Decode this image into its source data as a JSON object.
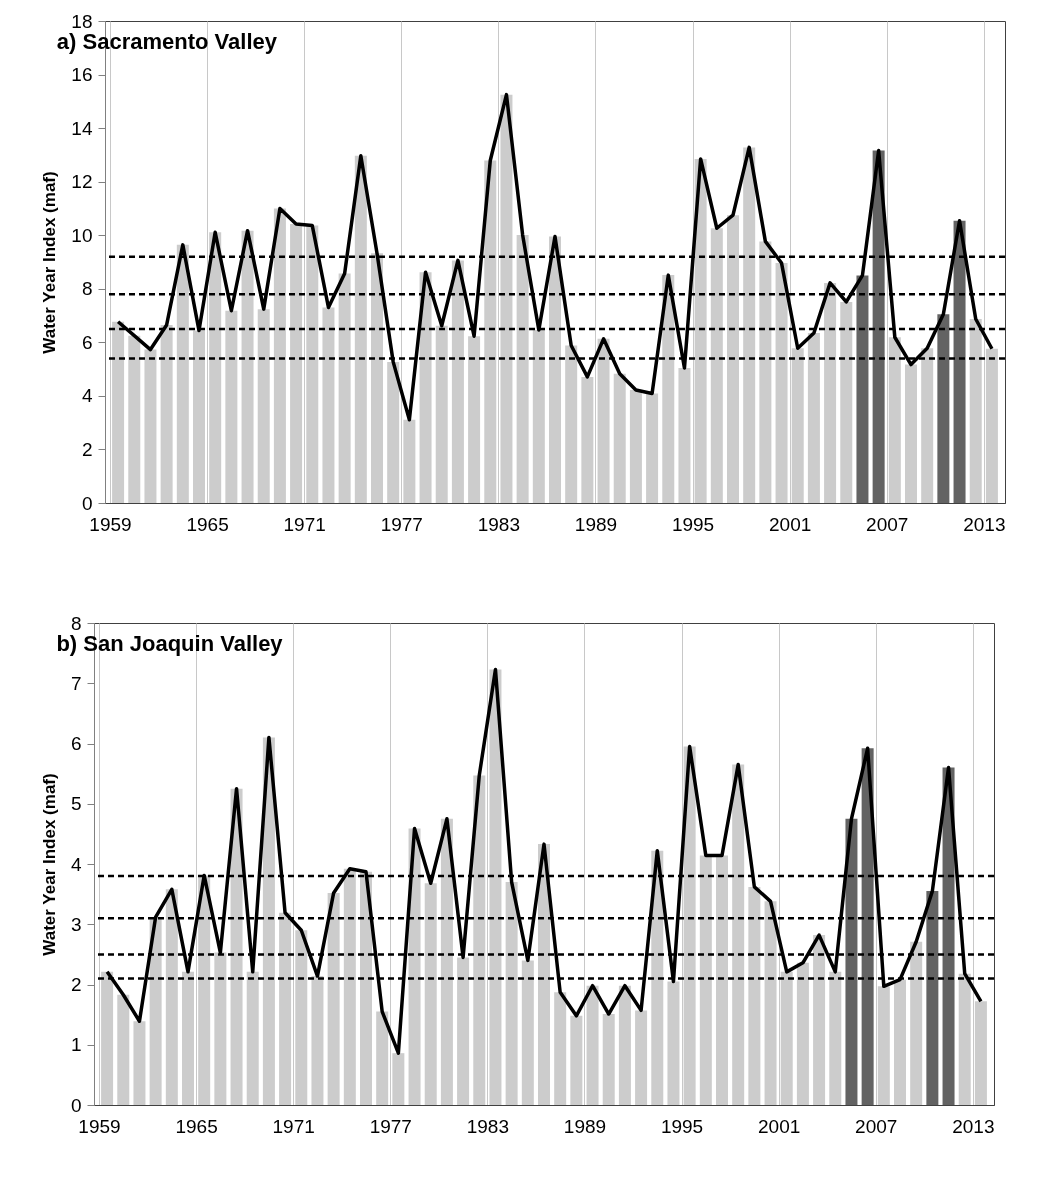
{
  "chart_data": [
    {
      "type": "bar",
      "title": "a) Sacramento Valley",
      "ylabel": "Water Year Index (maf)",
      "x": [
        1959.5,
        1960.5,
        1961.5,
        1962.5,
        1963.5,
        1964.5,
        1965.5,
        1966.5,
        1967.5,
        1968.5,
        1969.5,
        1970.5,
        1971.5,
        1972.5,
        1973.5,
        1974.5,
        1975.5,
        1976.5,
        1977.5,
        1978.5,
        1979.5,
        1980.5,
        1981.5,
        1982.5,
        1983.5,
        1984.5,
        1985.5,
        1986.5,
        1987.5,
        1988.5,
        1989.5,
        1990.5,
        1991.5,
        1992.5,
        1993.5,
        1994.5,
        1995.5,
        1996.5,
        1997.5,
        1998.5,
        1999.5,
        2000.5,
        2001.5,
        2002.5,
        2003.5,
        2004.5,
        2005.5,
        2006.5,
        2007.5,
        2008.5,
        2009.5,
        2010.5,
        2011.5,
        2012.5,
        2013.5
      ],
      "series": [
        {
          "colors": [
            "#cccccc",
            "#cccccc",
            "#cccccc",
            "#cccccc",
            "#cccccc",
            "#cccccc",
            "#cccccc",
            "#cccccc",
            "#cccccc",
            "#cccccc",
            "#cccccc",
            "#cccccc",
            "#cccccc",
            "#cccccc",
            "#cccccc",
            "#cccccc",
            "#cccccc",
            "#cccccc",
            "#cccccc",
            "#cccccc",
            "#cccccc",
            "#cccccc",
            "#cccccc",
            "#cccccc",
            "#cccccc",
            "#cccccc",
            "#cccccc",
            "#cccccc",
            "#cccccc",
            "#cccccc",
            "#cccccc",
            "#cccccc",
            "#cccccc",
            "#cccccc",
            "#cccccc",
            "#cccccc",
            "#cccccc",
            "#cccccc",
            "#cccccc",
            "#cccccc",
            "#cccccc",
            "#cccccc",
            "#cccccc",
            "#cccccc",
            "#cccccc",
            "#cccccc",
            "#636363",
            "#636363",
            "#cccccc",
            "#cccccc",
            "#cccccc",
            "#636363",
            "#636363",
            "#cccccc",
            "#cccccc"
          ],
          "values": [
            6.77,
            6.25,
            5.73,
            6.65,
            9.64,
            6.44,
            10.11,
            7.18,
            10.17,
            7.24,
            11.0,
            10.42,
            10.36,
            7.3,
            8.57,
            12.97,
            9.33,
            5.27,
            3.11,
            8.62,
            6.62,
            9.06,
            6.23,
            12.79,
            15.25,
            10.01,
            6.46,
            9.95,
            5.88,
            4.71,
            6.13,
            4.83,
            4.22,
            4.09,
            8.51,
            5.04,
            12.85,
            10.26,
            10.75,
            13.28,
            9.77,
            8.96,
            5.78,
            6.35,
            8.22,
            7.51,
            8.5,
            13.16,
            6.19,
            5.17,
            5.78,
            7.05,
            10.54,
            6.87,
            5.76
          ]
        },
        {
          "type": "line",
          "color": "#000000",
          "values": [
            6.77,
            6.25,
            5.73,
            6.65,
            9.64,
            6.44,
            10.11,
            7.18,
            10.17,
            7.24,
            11.0,
            10.42,
            10.36,
            7.3,
            8.57,
            12.97,
            9.33,
            5.27,
            3.11,
            8.62,
            6.62,
            9.06,
            6.23,
            12.79,
            15.25,
            10.01,
            6.46,
            9.95,
            5.88,
            4.71,
            6.13,
            4.83,
            4.22,
            4.09,
            8.51,
            5.04,
            12.85,
            10.26,
            10.75,
            13.28,
            9.77,
            8.96,
            5.78,
            6.35,
            8.22,
            7.51,
            8.5,
            13.16,
            6.19,
            5.17,
            5.78,
            7.05,
            10.54,
            6.87,
            5.76
          ]
        }
      ],
      "xlim": [
        1959,
        2014
      ],
      "xticks": [
        1959,
        1965,
        1971,
        1977,
        1983,
        1989,
        1995,
        2001,
        2007,
        2013
      ],
      "ylim": [
        0,
        18
      ],
      "yticks": [
        0,
        2,
        4,
        6,
        8,
        10,
        12,
        14,
        16,
        18
      ],
      "grid": "x",
      "line_style": "solid",
      "ref_lines": [
        {
          "axis": "y",
          "value": 9.2,
          "color": "#000000",
          "line_style": "dashed"
        },
        {
          "axis": "y",
          "value": 7.8,
          "color": "#000000",
          "line_style": "dashed"
        },
        {
          "axis": "y",
          "value": 6.5,
          "color": "#000000",
          "line_style": "dashed"
        },
        {
          "axis": "y",
          "value": 5.4,
          "color": "#000000",
          "line_style": "dashed"
        }
      ]
    },
    {
      "type": "bar",
      "title": "b) San Joaquin Valley",
      "ylabel": "Water Year Index (maf)",
      "x": [
        1959.5,
        1960.5,
        1961.5,
        1962.5,
        1963.5,
        1964.5,
        1965.5,
        1966.5,
        1967.5,
        1968.5,
        1969.5,
        1970.5,
        1971.5,
        1972.5,
        1973.5,
        1974.5,
        1975.5,
        1976.5,
        1977.5,
        1978.5,
        1979.5,
        1980.5,
        1981.5,
        1982.5,
        1983.5,
        1984.5,
        1985.5,
        1986.5,
        1987.5,
        1988.5,
        1989.5,
        1990.5,
        1991.5,
        1992.5,
        1993.5,
        1994.5,
        1995.5,
        1996.5,
        1997.5,
        1998.5,
        1999.5,
        2000.5,
        2001.5,
        2002.5,
        2003.5,
        2004.5,
        2005.5,
        2006.5,
        2007.5,
        2008.5,
        2009.5,
        2010.5,
        2011.5,
        2012.5,
        2013.5
      ],
      "series": [
        {
          "colors": [
            "#cccccc",
            "#cccccc",
            "#cccccc",
            "#cccccc",
            "#cccccc",
            "#cccccc",
            "#cccccc",
            "#cccccc",
            "#cccccc",
            "#cccccc",
            "#cccccc",
            "#cccccc",
            "#cccccc",
            "#cccccc",
            "#cccccc",
            "#cccccc",
            "#cccccc",
            "#cccccc",
            "#cccccc",
            "#cccccc",
            "#cccccc",
            "#cccccc",
            "#cccccc",
            "#cccccc",
            "#cccccc",
            "#cccccc",
            "#cccccc",
            "#cccccc",
            "#cccccc",
            "#cccccc",
            "#cccccc",
            "#cccccc",
            "#cccccc",
            "#cccccc",
            "#cccccc",
            "#cccccc",
            "#cccccc",
            "#cccccc",
            "#cccccc",
            "#cccccc",
            "#cccccc",
            "#cccccc",
            "#cccccc",
            "#cccccc",
            "#cccccc",
            "#cccccc",
            "#636363",
            "#636363",
            "#cccccc",
            "#cccccc",
            "#cccccc",
            "#636363",
            "#636363",
            "#cccccc",
            "#cccccc"
          ],
          "values": [
            2.21,
            1.83,
            1.39,
            3.12,
            3.58,
            2.21,
            3.81,
            2.53,
            5.25,
            2.21,
            6.1,
            3.19,
            2.9,
            2.14,
            3.52,
            3.92,
            3.87,
            1.55,
            0.86,
            4.59,
            3.68,
            4.75,
            2.45,
            5.47,
            7.23,
            3.7,
            2.4,
            4.33,
            1.87,
            1.48,
            1.98,
            1.51,
            1.98,
            1.57,
            4.22,
            2.05,
            5.95,
            4.14,
            4.14,
            5.65,
            3.62,
            3.38,
            2.21,
            2.36,
            2.82,
            2.21,
            4.75,
            5.92,
            1.97,
            2.08,
            2.71,
            3.55,
            5.6,
            2.18,
            1.72
          ]
        },
        {
          "type": "line",
          "color": "#000000",
          "values": [
            2.21,
            1.83,
            1.39,
            3.12,
            3.58,
            2.21,
            3.81,
            2.53,
            5.25,
            2.21,
            6.1,
            3.19,
            2.9,
            2.14,
            3.52,
            3.92,
            3.87,
            1.55,
            0.86,
            4.59,
            3.68,
            4.75,
            2.45,
            5.47,
            7.23,
            3.7,
            2.4,
            4.33,
            1.87,
            1.48,
            1.98,
            1.51,
            1.98,
            1.57,
            4.22,
            2.05,
            5.95,
            4.14,
            4.14,
            5.65,
            3.62,
            3.38,
            2.21,
            2.36,
            2.82,
            2.21,
            4.75,
            5.92,
            1.97,
            2.08,
            2.71,
            3.55,
            5.6,
            2.18,
            1.72
          ]
        }
      ],
      "xlim": [
        1959,
        2014
      ],
      "xticks": [
        1959,
        1965,
        1971,
        1977,
        1983,
        1989,
        1995,
        2001,
        2007,
        2013
      ],
      "ylim": [
        0,
        8
      ],
      "yticks": [
        0,
        1,
        2,
        3,
        4,
        5,
        6,
        7,
        8
      ],
      "grid": "x",
      "line_style": "solid",
      "ref_lines": [
        {
          "axis": "y",
          "value": 3.8,
          "color": "#000000",
          "line_style": "dashed"
        },
        {
          "axis": "y",
          "value": 3.1,
          "color": "#000000",
          "line_style": "dashed"
        },
        {
          "axis": "y",
          "value": 2.5,
          "color": "#000000",
          "line_style": "dashed"
        },
        {
          "axis": "y",
          "value": 2.1,
          "color": "#000000",
          "line_style": "dashed"
        }
      ]
    }
  ]
}
